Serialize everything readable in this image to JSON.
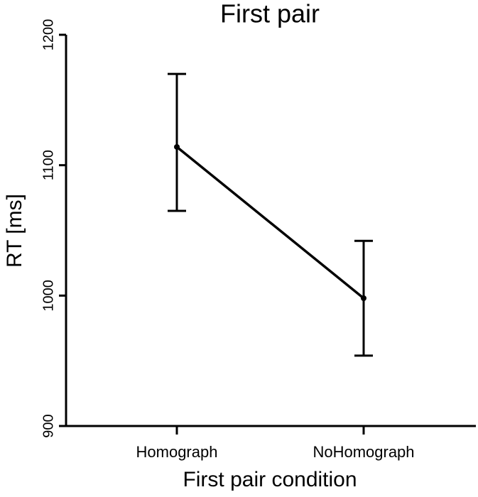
{
  "chart_data": {
    "type": "line",
    "title": "First pair",
    "x_label": "First pair condition",
    "y_label": "RT [ms]",
    "categories": [
      "Homograph",
      "NoHomograph"
    ],
    "values": [
      1114,
      998
    ],
    "ci_lower": [
      1065,
      954
    ],
    "ci_upper": [
      1170,
      1042
    ],
    "color": "#000000",
    "ylim": [
      900,
      1200
    ],
    "yticks": [
      900,
      1000,
      1100,
      1200
    ],
    "grid": false
  }
}
